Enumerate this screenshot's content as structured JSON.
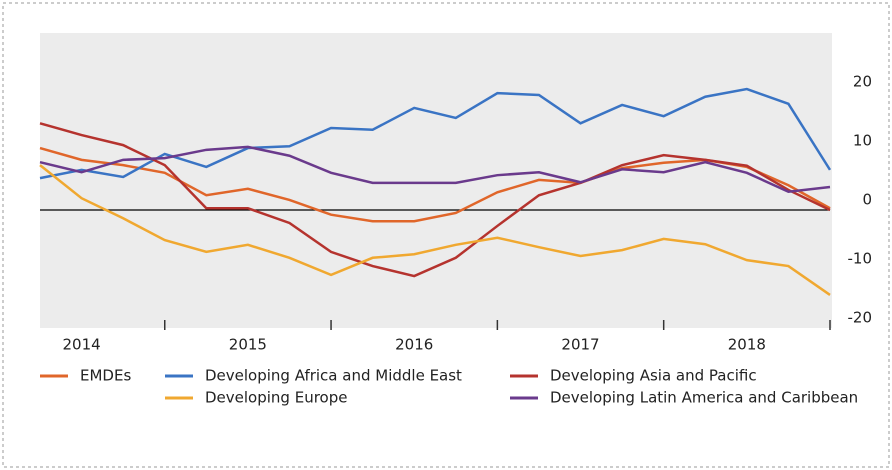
{
  "chart_data": {
    "type": "line",
    "x": [
      2014.25,
      2014.5,
      2014.75,
      2015.0,
      2015.25,
      2015.5,
      2015.75,
      2016.0,
      2016.25,
      2016.5,
      2016.75,
      2017.0,
      2017.25,
      2017.5,
      2017.75,
      2018.0,
      2018.25,
      2018.5,
      2018.75,
      2019.0
    ],
    "xlim": [
      2014.25,
      2019.0
    ],
    "xticks": [
      {
        "value": 2014.5,
        "label": "2014"
      },
      {
        "value": 2015.5,
        "label": "2015"
      },
      {
        "value": 2016.5,
        "label": "2016"
      },
      {
        "value": 2017.5,
        "label": "2017"
      },
      {
        "value": 2018.5,
        "label": "2018"
      }
    ],
    "xtick_marks": [
      2015,
      2016,
      2017,
      2018,
      2019
    ],
    "ylim": [
      -20,
      30
    ],
    "yticks": [
      -20,
      -10,
      0,
      10,
      20
    ],
    "series": [
      {
        "name": "EMDEs",
        "color": "#e0662a",
        "values": [
          10.5,
          8.5,
          7.6,
          6.3,
          2.5,
          3.6,
          1.7,
          -0.8,
          -1.9,
          -1.9,
          -0.5,
          3.0,
          5.1,
          4.6,
          7.1,
          8.0,
          8.5,
          7.3,
          4.2,
          0.3
        ]
      },
      {
        "name": "Developing Africa and Middle East",
        "color": "#3a74c4",
        "values": [
          5.4,
          6.8,
          5.6,
          9.5,
          7.3,
          10.5,
          10.8,
          13.9,
          13.6,
          17.3,
          15.6,
          19.8,
          19.5,
          14.7,
          17.8,
          15.9,
          19.2,
          20.5,
          18.0,
          6.8
        ]
      },
      {
        "name": "Developing Asia and Pacific",
        "color": "#b5332e",
        "values": [
          14.7,
          12.7,
          11.0,
          7.6,
          0.3,
          0.3,
          -2.2,
          -7.1,
          -9.5,
          -11.2,
          -8.1,
          -2.7,
          2.5,
          4.6,
          7.6,
          9.3,
          8.5,
          7.5,
          3.4,
          0
        ]
      },
      {
        "name": "Developing Europe",
        "color": "#f0a830",
        "values": [
          7.6,
          2.0,
          -1.4,
          -5.1,
          -7.1,
          -5.9,
          -8.1,
          -11.0,
          -8.1,
          -7.5,
          -5.9,
          -4.7,
          -6.3,
          -7.8,
          -6.8,
          -4.9,
          -5.8,
          -8.5,
          -9.5,
          -14.4
        ]
      },
      {
        "name": "Developing Latin America and Caribbean",
        "color": "#6a3a8c",
        "values": [
          8.1,
          6.4,
          8.5,
          8.8,
          10.2,
          10.7,
          9.2,
          6.3,
          4.6,
          4.6,
          4.6,
          5.9,
          6.4,
          4.7,
          6.9,
          6.4,
          8.1,
          6.3,
          3.1,
          3.9
        ]
      }
    ]
  }
}
